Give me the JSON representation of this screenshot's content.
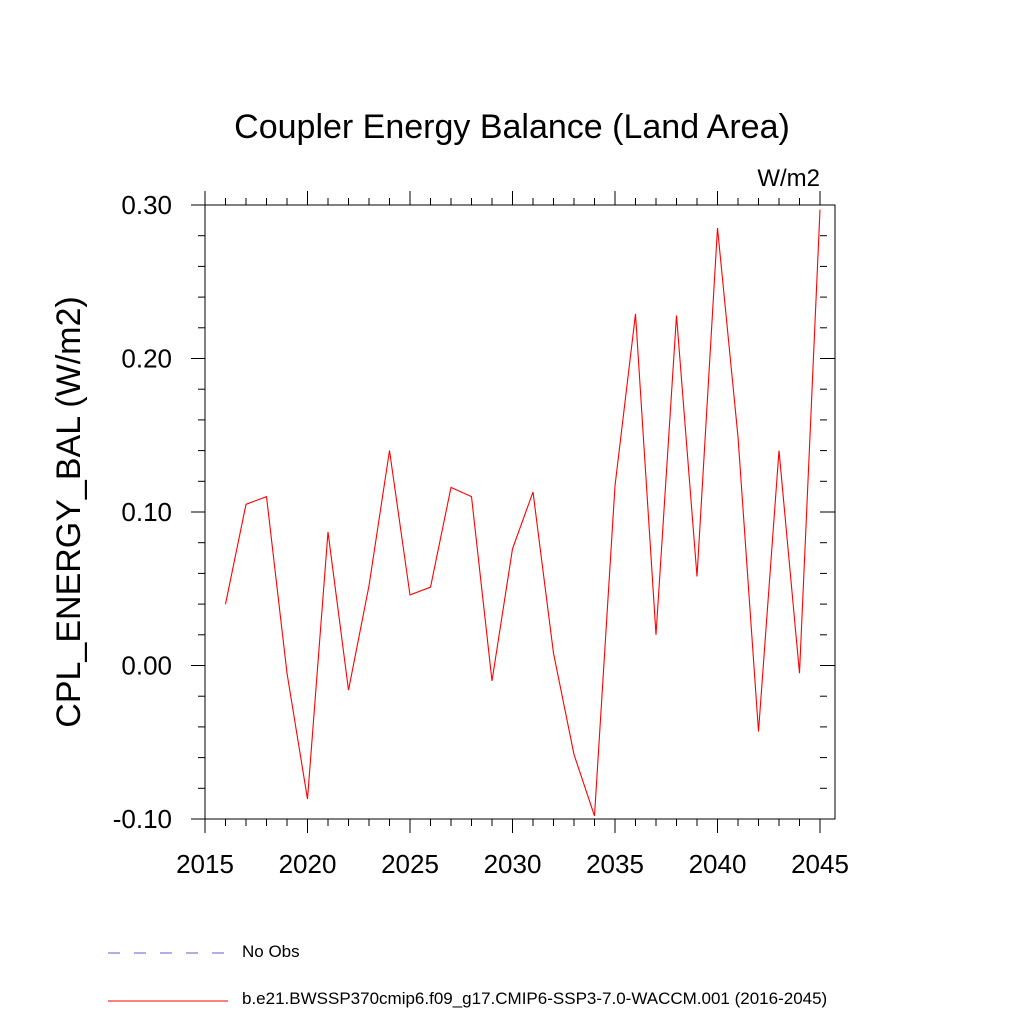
{
  "chart_data": {
    "type": "line",
    "title": "Coupler Energy Balance (Land Area)",
    "units_label": "W/m2",
    "ylabel": "CPL_ENERGY_BAL  (W/m2)",
    "xlabel": "",
    "xlim": [
      2015,
      2045
    ],
    "ylim": [
      -0.1,
      0.3
    ],
    "x_ticks": [
      2015,
      2020,
      2025,
      2030,
      2035,
      2040,
      2045
    ],
    "x_tick_labels": [
      "2015",
      "2020",
      "2025",
      "2030",
      "2035",
      "2040",
      "2045"
    ],
    "y_ticks": [
      -0.1,
      0.0,
      0.1,
      0.2,
      0.3
    ],
    "y_tick_labels": [
      "-0.10",
      "0.00",
      "0.10",
      "0.20",
      "0.30"
    ],
    "grid": false,
    "legend_position": "bottom",
    "series": [
      {
        "name": "b.e21.BWSSP370cmip6.f09_g17.CMIP6-SSP3-7.0-WACCM.001 (2016-2045)",
        "color": "#ff0000",
        "style": "solid",
        "x": [
          2016,
          2017,
          2018,
          2019,
          2020,
          2021,
          2022,
          2023,
          2024,
          2025,
          2026,
          2027,
          2028,
          2029,
          2030,
          2031,
          2032,
          2033,
          2034,
          2035,
          2036,
          2037,
          2038,
          2039,
          2040,
          2041,
          2042,
          2043,
          2044,
          2045
        ],
        "values": [
          0.04,
          0.105,
          0.11,
          -0.005,
          -0.087,
          0.087,
          -0.016,
          0.052,
          0.14,
          0.046,
          0.051,
          0.116,
          0.11,
          -0.01,
          0.076,
          0.113,
          0.008,
          -0.058,
          -0.098,
          0.117,
          0.229,
          0.02,
          0.228,
          0.058,
          0.285,
          0.149,
          -0.043,
          0.14,
          -0.005,
          0.297
        ]
      }
    ],
    "legend": [
      {
        "label": "No Obs",
        "color": "#6a5acd",
        "style": "dashed"
      },
      {
        "label": "b.e21.BWSSP370cmip6.f09_g17.CMIP6-SSP3-7.0-WACCM.001 (2016-2045)",
        "color": "#ff0000",
        "style": "solid"
      }
    ]
  }
}
